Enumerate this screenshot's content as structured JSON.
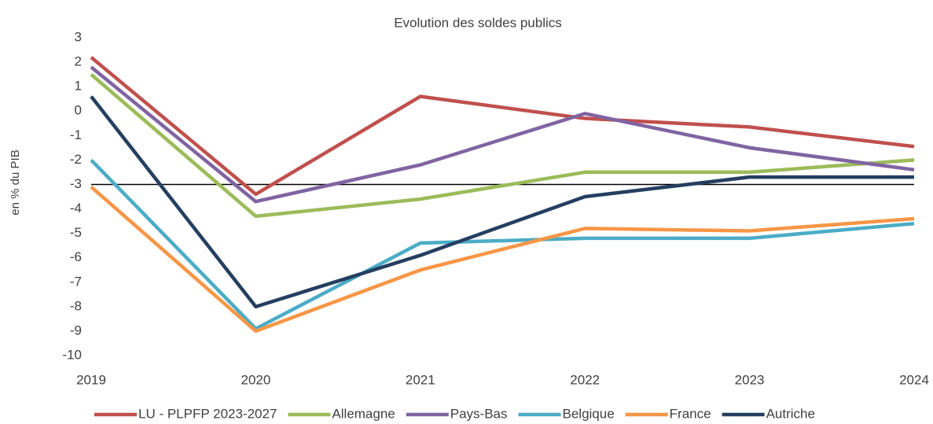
{
  "chart_data": {
    "type": "line",
    "title": "Evolution des soldes publics",
    "y_label": "en % du PIB",
    "x": [
      2019,
      2020,
      2021,
      2022,
      2023,
      2024
    ],
    "xlim": [
      2019,
      2024
    ],
    "xticks": [
      2019,
      2020,
      2021,
      2022,
      2023,
      2024
    ],
    "ylim": [
      -10,
      3
    ],
    "yticks": [
      -10,
      -9,
      -8,
      -7,
      -6,
      -5,
      -4,
      -3,
      -2,
      -1,
      0,
      1,
      2,
      3
    ],
    "reference_line": -3,
    "reference_color": "#000000",
    "grid": false,
    "legend": "bottom",
    "series": [
      {
        "name": "LU - PLPFP 2023-2027",
        "color": "#c0504d",
        "values": [
          2.2,
          -3.4,
          0.6,
          -0.3,
          -0.65,
          -1.45
        ]
      },
      {
        "name": "Allemagne",
        "color": "#9bbb59",
        "values": [
          1.5,
          -4.3,
          -3.6,
          -2.5,
          -2.5,
          -2.0
        ]
      },
      {
        "name": "Pays-Bas",
        "color": "#8064a2",
        "values": [
          1.8,
          -3.7,
          -2.2,
          -0.1,
          -1.5,
          -2.4
        ]
      },
      {
        "name": "Belgique",
        "color": "#4bacc6",
        "values": [
          -2.0,
          -8.9,
          -5.4,
          -5.2,
          -5.2,
          -4.6
        ]
      },
      {
        "name": "France",
        "color": "#f79646",
        "values": [
          -3.1,
          -9.0,
          -6.5,
          -4.8,
          -4.9,
          -4.4
        ]
      },
      {
        "name": "Autriche",
        "color": "#243f60",
        "values": [
          0.6,
          -8.0,
          -5.9,
          -3.5,
          -2.7,
          -2.7
        ]
      }
    ]
  }
}
